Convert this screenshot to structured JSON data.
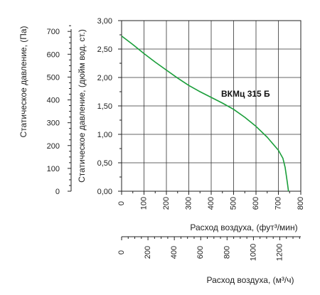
{
  "chart_data": {
    "type": "line",
    "series": [
      {
        "name": "ВКМц 315 Б",
        "color": "#1a9e3a",
        "x": [
          0,
          50,
          100,
          150,
          200,
          250,
          300,
          350,
          400,
          450,
          500,
          550,
          600,
          650,
          700,
          720,
          730,
          740,
          745
        ],
        "y": [
          2.73,
          2.58,
          2.42,
          2.27,
          2.13,
          1.99,
          1.86,
          1.75,
          1.65,
          1.55,
          1.44,
          1.3,
          1.14,
          0.95,
          0.72,
          0.58,
          0.42,
          0.15,
          0.0
        ]
      }
    ],
    "x_axis": {
      "label": "Расход воздуха, (фут³/мин)",
      "range": [
        0,
        800
      ],
      "ticks": [
        "0",
        "100",
        "200",
        "300",
        "400",
        "500",
        "600",
        "700",
        "800"
      ],
      "tick_values": [
        0,
        100,
        200,
        300,
        400,
        500,
        600,
        700,
        800
      ]
    },
    "x_axis_secondary": {
      "label": "Расход воздуха, (м³/ч)",
      "range": [
        0,
        1359.2
      ],
      "ticks": [
        "0",
        "200",
        "400",
        "600",
        "800",
        "1000",
        "1200"
      ],
      "tick_values": [
        0,
        200,
        400,
        600,
        800,
        1000,
        1200
      ]
    },
    "y_axis": {
      "label": "Статическое давление, (дюйм вод. ст.)",
      "range": [
        0,
        3
      ],
      "ticks": [
        "0,00",
        "0,50",
        "1,00",
        "1,50",
        "2,00",
        "2,50",
        "3,00"
      ],
      "tick_values": [
        0,
        0.5,
        1.0,
        1.5,
        2.0,
        2.5,
        3.0
      ]
    },
    "y_axis_secondary": {
      "label": "Статическое давление, (Па)",
      "range": [
        0,
        747.3
      ],
      "ticks": [
        "0",
        "100",
        "200",
        "300",
        "400",
        "500",
        "600",
        "700"
      ],
      "tick_values": [
        0,
        100,
        200,
        300,
        400,
        500,
        600,
        700
      ]
    },
    "annotation": "ВКМц 315 Б",
    "grid": true
  }
}
